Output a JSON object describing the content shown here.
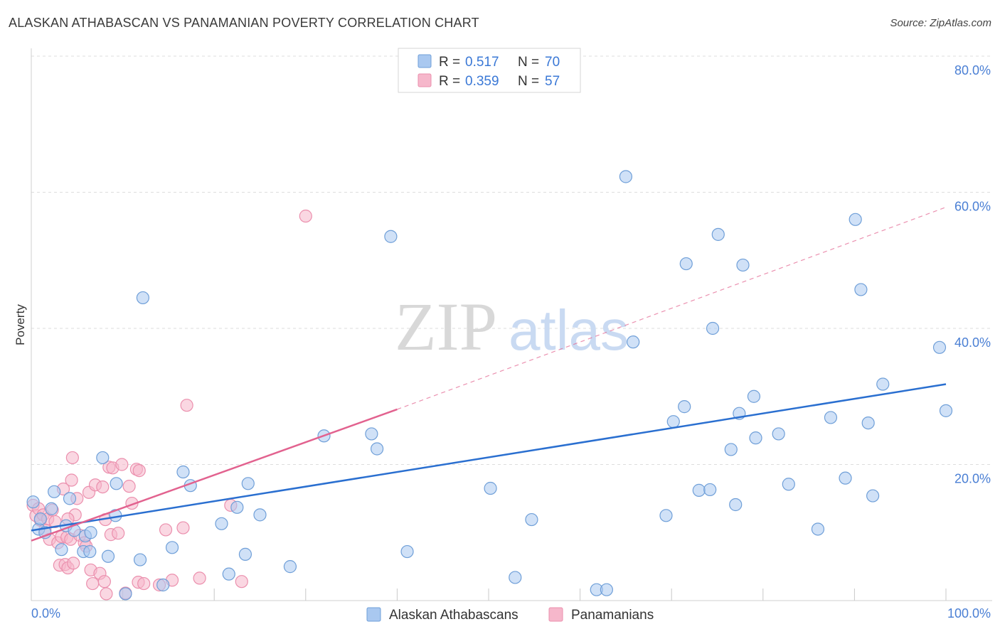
{
  "header": {
    "title": "ALASKAN ATHABASCAN VS PANAMANIAN POVERTY CORRELATION CHART",
    "source": "Source: ZipAtlas.com"
  },
  "watermark": {
    "zip": "ZIP",
    "atlas": "atlas"
  },
  "colors": {
    "blue_fill": "#a9c8f0",
    "blue_stroke": "#6f9fd8",
    "blue_line": "#2a6fd0",
    "pink_fill": "#f6b7cb",
    "pink_stroke": "#eb8fad",
    "pink_line": "#e2628f",
    "tick_text": "#4a7fd4",
    "grid": "#dddddd"
  },
  "legend": {
    "items": [
      {
        "r_label": "R =",
        "r_value": "0.517",
        "n_label": "N =",
        "n_value": "70",
        "color": "#a9c8f0",
        "stroke": "#6f9fd8"
      },
      {
        "r_label": "R =",
        "r_value": "0.359",
        "n_label": "N =",
        "n_value": "57",
        "color": "#f6b7cb",
        "stroke": "#eb8fad"
      }
    ]
  },
  "chart_data": {
    "type": "scatter",
    "title": "ALASKAN ATHABASCAN VS PANAMANIAN POVERTY CORRELATION CHART",
    "xlabel": "",
    "ylabel": "Poverty",
    "xlim": [
      0,
      100
    ],
    "ylim": [
      0,
      85
    ],
    "x_tick_labels": [
      "0.0%",
      "100.0%"
    ],
    "y_ticks": [
      20,
      40,
      60,
      80
    ],
    "y_tick_labels": [
      "20.0%",
      "40.0%",
      "60.0%",
      "80.0%"
    ],
    "grid": true,
    "legend_position": "top-center",
    "series": [
      {
        "name": "Alaskan Athabascans",
        "r": 0.517,
        "n": 70,
        "trend": {
          "x0": 0,
          "y0": 10.3,
          "x1": 100,
          "y1": 31.8,
          "dashed_extension": false
        },
        "points": [
          [
            0.2,
            14.5
          ],
          [
            0.8,
            10.5
          ],
          [
            1.5,
            10.0
          ],
          [
            2.2,
            13.5
          ],
          [
            2.5,
            16.0
          ],
          [
            3.3,
            7.5
          ],
          [
            3.8,
            11.0
          ],
          [
            4.2,
            15.0
          ],
          [
            4.7,
            10.3
          ],
          [
            5.7,
            7.2
          ],
          [
            5.9,
            9.5
          ],
          [
            6.4,
            7.2
          ],
          [
            6.5,
            10.0
          ],
          [
            7.8,
            21.0
          ],
          [
            8.4,
            6.5
          ],
          [
            9.2,
            12.5
          ],
          [
            9.3,
            17.2
          ],
          [
            10.3,
            1.0
          ],
          [
            11.9,
            6.0
          ],
          [
            12.2,
            44.5
          ],
          [
            14.4,
            2.3
          ],
          [
            15.4,
            7.8
          ],
          [
            16.6,
            18.9
          ],
          [
            17.4,
            16.9
          ],
          [
            20.8,
            11.3
          ],
          [
            21.6,
            3.9
          ],
          [
            22.5,
            13.7
          ],
          [
            23.4,
            6.8
          ],
          [
            23.7,
            17.2
          ],
          [
            25.0,
            12.6
          ],
          [
            28.3,
            5.0
          ],
          [
            32.0,
            24.2
          ],
          [
            37.2,
            24.5
          ],
          [
            37.8,
            22.3
          ],
          [
            39.3,
            53.5
          ],
          [
            41.1,
            7.2
          ],
          [
            50.2,
            16.5
          ],
          [
            52.9,
            3.4
          ],
          [
            54.7,
            11.9
          ],
          [
            61.8,
            1.6
          ],
          [
            62.9,
            1.6
          ],
          [
            65.0,
            62.3
          ],
          [
            65.8,
            38.0
          ],
          [
            69.4,
            12.5
          ],
          [
            70.2,
            26.3
          ],
          [
            71.4,
            28.5
          ],
          [
            71.6,
            49.5
          ],
          [
            73.0,
            16.2
          ],
          [
            74.2,
            16.3
          ],
          [
            74.5,
            40.0
          ],
          [
            75.1,
            53.8
          ],
          [
            76.5,
            22.2
          ],
          [
            77.0,
            14.1
          ],
          [
            77.4,
            27.5
          ],
          [
            77.8,
            49.3
          ],
          [
            79.0,
            30.0
          ],
          [
            79.2,
            23.9
          ],
          [
            81.7,
            24.5
          ],
          [
            82.8,
            17.1
          ],
          [
            86.0,
            10.5
          ],
          [
            87.4,
            26.9
          ],
          [
            89.0,
            18.0
          ],
          [
            90.1,
            56.0
          ],
          [
            90.7,
            45.7
          ],
          [
            91.5,
            26.1
          ],
          [
            92.0,
            15.4
          ],
          [
            93.1,
            31.8
          ],
          [
            99.3,
            37.2
          ],
          [
            100.0,
            27.9
          ],
          [
            1.0,
            12.0
          ]
        ]
      },
      {
        "name": "Panamanians",
        "r": 0.359,
        "n": 57,
        "trend": {
          "x0": 0,
          "y0": 8.8,
          "x1": 40,
          "y1": 28.1,
          "dashed_extension": true,
          "ext_x1": 100,
          "ext_y1": 57.8
        },
        "points": [
          [
            0.2,
            14.0
          ],
          [
            0.5,
            12.5
          ],
          [
            0.8,
            13.5
          ],
          [
            1.0,
            11.8
          ],
          [
            1.3,
            12.6
          ],
          [
            1.5,
            10.4
          ],
          [
            1.8,
            12.0
          ],
          [
            2.0,
            9.0
          ],
          [
            2.3,
            13.3
          ],
          [
            2.6,
            11.6
          ],
          [
            2.9,
            8.5
          ],
          [
            3.1,
            5.2
          ],
          [
            3.3,
            9.4
          ],
          [
            3.5,
            16.4
          ],
          [
            3.7,
            5.3
          ],
          [
            3.9,
            9.3
          ],
          [
            4.0,
            4.8
          ],
          [
            4.3,
            9.0
          ],
          [
            4.4,
            17.7
          ],
          [
            4.5,
            21.0
          ],
          [
            4.6,
            5.5
          ],
          [
            4.8,
            12.6
          ],
          [
            5.0,
            15.0
          ],
          [
            5.3,
            9.6
          ],
          [
            5.8,
            8.5
          ],
          [
            6.0,
            8.0
          ],
          [
            6.3,
            15.9
          ],
          [
            6.5,
            4.5
          ],
          [
            6.7,
            2.5
          ],
          [
            7.0,
            17.0
          ],
          [
            7.5,
            4.0
          ],
          [
            7.8,
            16.7
          ],
          [
            8.0,
            2.8
          ],
          [
            8.1,
            11.9
          ],
          [
            8.2,
            1.0
          ],
          [
            8.5,
            19.6
          ],
          [
            8.7,
            9.7
          ],
          [
            8.9,
            19.5
          ],
          [
            9.5,
            9.9
          ],
          [
            10.3,
            1.1
          ],
          [
            9.9,
            20.0
          ],
          [
            10.7,
            16.8
          ],
          [
            11.0,
            14.3
          ],
          [
            11.5,
            19.3
          ],
          [
            11.7,
            2.7
          ],
          [
            11.8,
            19.1
          ],
          [
            12.3,
            2.5
          ],
          [
            14.0,
            2.3
          ],
          [
            14.7,
            10.4
          ],
          [
            15.4,
            3.0
          ],
          [
            16.6,
            10.7
          ],
          [
            17.0,
            28.7
          ],
          [
            18.4,
            3.3
          ],
          [
            21.8,
            14.0
          ],
          [
            23.0,
            2.8
          ],
          [
            30.0,
            56.5
          ],
          [
            4.0,
            12.0
          ]
        ]
      }
    ]
  },
  "bottom_legend": {
    "items": [
      {
        "label": "Alaskan Athabascans",
        "color": "#a9c8f0",
        "stroke": "#6f9fd8"
      },
      {
        "label": "Panamanians",
        "color": "#f6b7cb",
        "stroke": "#eb8fad"
      }
    ]
  }
}
